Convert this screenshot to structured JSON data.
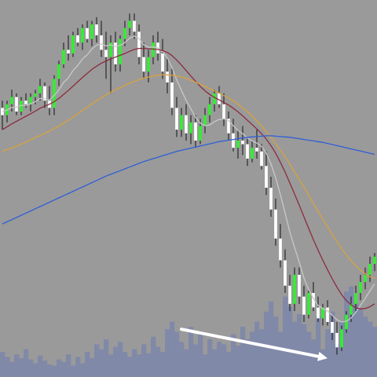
{
  "chart_data": {
    "type": "candlestick",
    "title": "",
    "xlabel": "",
    "ylabel": "",
    "grid": false,
    "legend": "none",
    "x_count": 80,
    "y_range": [
      0,
      100
    ],
    "volume_range": [
      0,
      100
    ],
    "colors": {
      "background": "#9a9a9a",
      "up_candle": "#33ee33",
      "down_candle": "#ffffff",
      "wick": "#111111",
      "volume": "#8189a8",
      "arrow": "#ffffff"
    },
    "candles": [
      {
        "o": 72,
        "h": 74,
        "l": 66,
        "c": 70
      },
      {
        "o": 70,
        "h": 74,
        "l": 68,
        "c": 73
      },
      {
        "o": 73,
        "h": 77,
        "l": 71,
        "c": 75
      },
      {
        "o": 75,
        "h": 76,
        "l": 70,
        "c": 71
      },
      {
        "o": 71,
        "h": 75,
        "l": 70,
        "c": 74
      },
      {
        "o": 74,
        "h": 76,
        "l": 72,
        "c": 73
      },
      {
        "o": 73,
        "h": 76,
        "l": 71,
        "c": 75
      },
      {
        "o": 75,
        "h": 77,
        "l": 73,
        "c": 76
      },
      {
        "o": 76,
        "h": 80,
        "l": 74,
        "c": 78
      },
      {
        "o": 78,
        "h": 79,
        "l": 72,
        "c": 74
      },
      {
        "o": 74,
        "h": 78,
        "l": 70,
        "c": 72
      },
      {
        "o": 72,
        "h": 81,
        "l": 70,
        "c": 80
      },
      {
        "o": 80,
        "h": 85,
        "l": 78,
        "c": 84
      },
      {
        "o": 84,
        "h": 90,
        "l": 83,
        "c": 88
      },
      {
        "o": 88,
        "h": 92,
        "l": 85,
        "c": 87
      },
      {
        "o": 87,
        "h": 93,
        "l": 86,
        "c": 92
      },
      {
        "o": 92,
        "h": 94,
        "l": 89,
        "c": 90
      },
      {
        "o": 90,
        "h": 95,
        "l": 88,
        "c": 94
      },
      {
        "o": 94,
        "h": 96,
        "l": 90,
        "c": 91
      },
      {
        "o": 91,
        "h": 96,
        "l": 89,
        "c": 95
      },
      {
        "o": 95,
        "h": 97,
        "l": 90,
        "c": 92
      },
      {
        "o": 92,
        "h": 96,
        "l": 86,
        "c": 88
      },
      {
        "o": 88,
        "h": 93,
        "l": 80,
        "c": 86
      },
      {
        "o": 86,
        "h": 92,
        "l": 76,
        "c": 90
      },
      {
        "o": 90,
        "h": 93,
        "l": 82,
        "c": 84
      },
      {
        "o": 84,
        "h": 92,
        "l": 82,
        "c": 91
      },
      {
        "o": 91,
        "h": 96,
        "l": 89,
        "c": 94
      },
      {
        "o": 94,
        "h": 98,
        "l": 92,
        "c": 96
      },
      {
        "o": 96,
        "h": 98,
        "l": 91,
        "c": 93
      },
      {
        "o": 93,
        "h": 95,
        "l": 84,
        "c": 86
      },
      {
        "o": 86,
        "h": 90,
        "l": 80,
        "c": 82
      },
      {
        "o": 82,
        "h": 88,
        "l": 79,
        "c": 86
      },
      {
        "o": 86,
        "h": 92,
        "l": 84,
        "c": 90
      },
      {
        "o": 90,
        "h": 93,
        "l": 85,
        "c": 87
      },
      {
        "o": 87,
        "h": 91,
        "l": 80,
        "c": 82
      },
      {
        "o": 82,
        "h": 86,
        "l": 76,
        "c": 79
      },
      {
        "o": 79,
        "h": 83,
        "l": 70,
        "c": 72
      },
      {
        "o": 72,
        "h": 75,
        "l": 64,
        "c": 66
      },
      {
        "o": 66,
        "h": 72,
        "l": 64,
        "c": 70
      },
      {
        "o": 70,
        "h": 73,
        "l": 63,
        "c": 65
      },
      {
        "o": 65,
        "h": 70,
        "l": 62,
        "c": 68
      },
      {
        "o": 68,
        "h": 70,
        "l": 61,
        "c": 63
      },
      {
        "o": 63,
        "h": 69,
        "l": 62,
        "c": 67
      },
      {
        "o": 67,
        "h": 72,
        "l": 65,
        "c": 70
      },
      {
        "o": 70,
        "h": 75,
        "l": 68,
        "c": 73
      },
      {
        "o": 73,
        "h": 77,
        "l": 71,
        "c": 76
      },
      {
        "o": 76,
        "h": 78,
        "l": 72,
        "c": 73
      },
      {
        "o": 73,
        "h": 76,
        "l": 67,
        "c": 69
      },
      {
        "o": 69,
        "h": 71,
        "l": 63,
        "c": 65
      },
      {
        "o": 65,
        "h": 69,
        "l": 60,
        "c": 61
      },
      {
        "o": 61,
        "h": 66,
        "l": 58,
        "c": 63
      },
      {
        "o": 63,
        "h": 67,
        "l": 59,
        "c": 62
      },
      {
        "o": 62,
        "h": 64,
        "l": 56,
        "c": 58
      },
      {
        "o": 58,
        "h": 63,
        "l": 57,
        "c": 61
      },
      {
        "o": 61,
        "h": 66,
        "l": 58,
        "c": 60
      },
      {
        "o": 60,
        "h": 62,
        "l": 55,
        "c": 56
      },
      {
        "o": 56,
        "h": 60,
        "l": 48,
        "c": 50
      },
      {
        "o": 50,
        "h": 53,
        "l": 42,
        "c": 44
      },
      {
        "o": 44,
        "h": 47,
        "l": 34,
        "c": 36
      },
      {
        "o": 36,
        "h": 40,
        "l": 28,
        "c": 30
      },
      {
        "o": 30,
        "h": 33,
        "l": 21,
        "c": 23
      },
      {
        "o": 23,
        "h": 26,
        "l": 16,
        "c": 18
      },
      {
        "o": 18,
        "h": 28,
        "l": 16,
        "c": 26
      },
      {
        "o": 26,
        "h": 28,
        "l": 18,
        "c": 20
      },
      {
        "o": 20,
        "h": 23,
        "l": 13,
        "c": 15
      },
      {
        "o": 15,
        "h": 22,
        "l": 14,
        "c": 21
      },
      {
        "o": 21,
        "h": 24,
        "l": 16,
        "c": 17
      },
      {
        "o": 17,
        "h": 20,
        "l": 13,
        "c": 14
      },
      {
        "o": 14,
        "h": 18,
        "l": 12,
        "c": 17
      },
      {
        "o": 17,
        "h": 19,
        "l": 12,
        "c": 13
      },
      {
        "o": 13,
        "h": 15,
        "l": 8,
        "c": 10
      },
      {
        "o": 10,
        "h": 13,
        "l": 4,
        "c": 6
      },
      {
        "o": 6,
        "h": 12,
        "l": 5,
        "c": 11
      },
      {
        "o": 11,
        "h": 16,
        "l": 10,
        "c": 15
      },
      {
        "o": 15,
        "h": 20,
        "l": 13,
        "c": 18
      },
      {
        "o": 18,
        "h": 23,
        "l": 16,
        "c": 21
      },
      {
        "o": 21,
        "h": 26,
        "l": 19,
        "c": 24
      },
      {
        "o": 24,
        "h": 28,
        "l": 22,
        "c": 26
      },
      {
        "o": 26,
        "h": 31,
        "l": 24,
        "c": 29
      },
      {
        "o": 29,
        "h": 32,
        "l": 27,
        "c": 31
      }
    ],
    "volume": [
      20,
      16,
      12,
      18,
      15,
      22,
      14,
      11,
      17,
      13,
      10,
      9,
      14,
      12,
      18,
      9,
      16,
      11,
      20,
      15,
      26,
      22,
      30,
      18,
      24,
      28,
      20,
      16,
      22,
      18,
      26,
      19,
      32,
      24,
      20,
      38,
      44,
      36,
      28,
      22,
      40,
      26,
      34,
      18,
      30,
      22,
      28,
      26,
      20,
      34,
      25,
      40,
      30,
      36,
      44,
      38,
      52,
      60,
      48,
      36,
      64,
      56,
      44,
      50,
      42,
      36,
      30,
      48,
      22,
      38,
      52,
      26,
      44,
      68,
      72,
      58,
      54,
      48,
      44,
      40
    ],
    "series": [
      {
        "name": "",
        "color": "#c8c8c8",
        "values": [
          71,
          71.4,
          72.1,
          72.2,
          72.7,
          72.7,
          73.1,
          73.7,
          74.6,
          74.5,
          74.2,
          75.4,
          77,
          79,
          80.3,
          82.3,
          83.7,
          85.5,
          86.6,
          88.2,
          89.3,
          89.6,
          89.1,
          89.4,
          88.9,
          89.2,
          90,
          91.2,
          91.8,
          91.1,
          89.4,
          88.7,
          88.8,
          88.5,
          87.5,
          85.8,
          83.1,
          79.7,
          76.8,
          74.1,
          71.8,
          69.4,
          67.8,
          67.1,
          67.3,
          68.2,
          68.8,
          69,
          68.5,
          67.1,
          65.8,
          64.9,
          63.7,
          62.9,
          62.3,
          61.4,
          59.5,
          56.6,
          52.7,
          48.1,
          43,
          37.8,
          33.6,
          29.5,
          25.1,
          21.9,
          19.5,
          17.5,
          16.7,
          16,
          14.9,
          13.6,
          13,
          13.2,
          14.1,
          15.7,
          17.6,
          19.5,
          21.6,
          23.5
        ]
      },
      {
        "name": "",
        "color": "#8b2c3e",
        "values": [
          66,
          66.8,
          67.6,
          68.3,
          69,
          69.7,
          70.4,
          71.1,
          71.9,
          72.5,
          73,
          73.7,
          74.6,
          75.7,
          76.8,
          78,
          79.2,
          80.4,
          81.5,
          82.6,
          83.5,
          84.3,
          84.9,
          85.5,
          86,
          86.5,
          87,
          87.6,
          88.1,
          88.4,
          88.4,
          88.3,
          88.2,
          88.1,
          87.8,
          87.3,
          86.4,
          85.2,
          83.8,
          82.3,
          80.8,
          79.3,
          77.9,
          76.7,
          75.7,
          74.9,
          74.2,
          73.5,
          72.8,
          71.9,
          70.9,
          69.8,
          68.6,
          67.4,
          66.2,
          64.9,
          63.4,
          61.6,
          59.5,
          57,
          54.3,
          51.3,
          48.3,
          45.2,
          42,
          38.8,
          35.7,
          32.8,
          30,
          27.4,
          24.9,
          22.6,
          20.5,
          18.9,
          17.7,
          16.9,
          16.6,
          16.7,
          17.2,
          18
        ]
      },
      {
        "name": "",
        "color": "#d9a23e",
        "values": [
          60,
          60.5,
          61,
          61.5,
          62,
          62.6,
          63.2,
          63.8,
          64.4,
          65,
          65.6,
          66.3,
          67,
          67.8,
          68.6,
          69.5,
          70.4,
          71.3,
          72.2,
          73.1,
          74,
          74.8,
          75.6,
          76.3,
          77,
          77.6,
          78.2,
          78.8,
          79.3,
          79.8,
          80.2,
          80.5,
          80.8,
          81,
          81.1,
          81.1,
          81,
          80.8,
          80.5,
          80.1,
          79.6,
          79.1,
          78.5,
          77.9,
          77.3,
          76.7,
          76.1,
          75.4,
          74.7,
          73.9,
          73,
          72,
          70.9,
          69.7,
          68.4,
          67,
          65.5,
          63.9,
          62.2,
          60.4,
          58.5,
          56.5,
          54.4,
          52.3,
          50.1,
          47.9,
          45.7,
          43.5,
          41.3,
          39.2,
          37.1,
          35.1,
          33.2,
          31.5,
          29.9,
          28.5,
          27.3,
          26.3,
          25.5,
          25
        ]
      },
      {
        "name": "",
        "color": "#2f5fd6",
        "values": [
          40,
          40.6,
          41.2,
          41.8,
          42.4,
          43,
          43.6,
          44.2,
          44.8,
          45.4,
          46,
          46.6,
          47.2,
          47.8,
          48.4,
          49,
          49.6,
          50.2,
          50.8,
          51.4,
          52,
          52.6,
          53.2,
          53.7,
          54.2,
          54.7,
          55.2,
          55.7,
          56.2,
          56.7,
          57.2,
          57.6,
          58,
          58.4,
          58.8,
          59.2,
          59.6,
          60,
          60.3,
          60.6,
          60.9,
          61.2,
          61.5,
          61.8,
          62.1,
          62.4,
          62.7,
          62.9,
          63.1,
          63.3,
          63.5,
          63.7,
          63.9,
          64,
          64.1,
          64.2,
          64.3,
          64.3,
          64.2,
          64.1,
          64,
          63.9,
          63.7,
          63.5,
          63.3,
          63.1,
          62.9,
          62.7,
          62.5,
          62.2,
          61.9,
          61.6,
          61.3,
          61,
          60.7,
          60.4,
          60.1,
          59.8,
          59.5,
          59.2
        ]
      }
    ],
    "annotations": [
      {
        "type": "arrow",
        "color": "#ffffff",
        "from": {
          "x": 38,
          "y": 11
        },
        "to": {
          "x": 69,
          "y": 3
        }
      }
    ]
  }
}
